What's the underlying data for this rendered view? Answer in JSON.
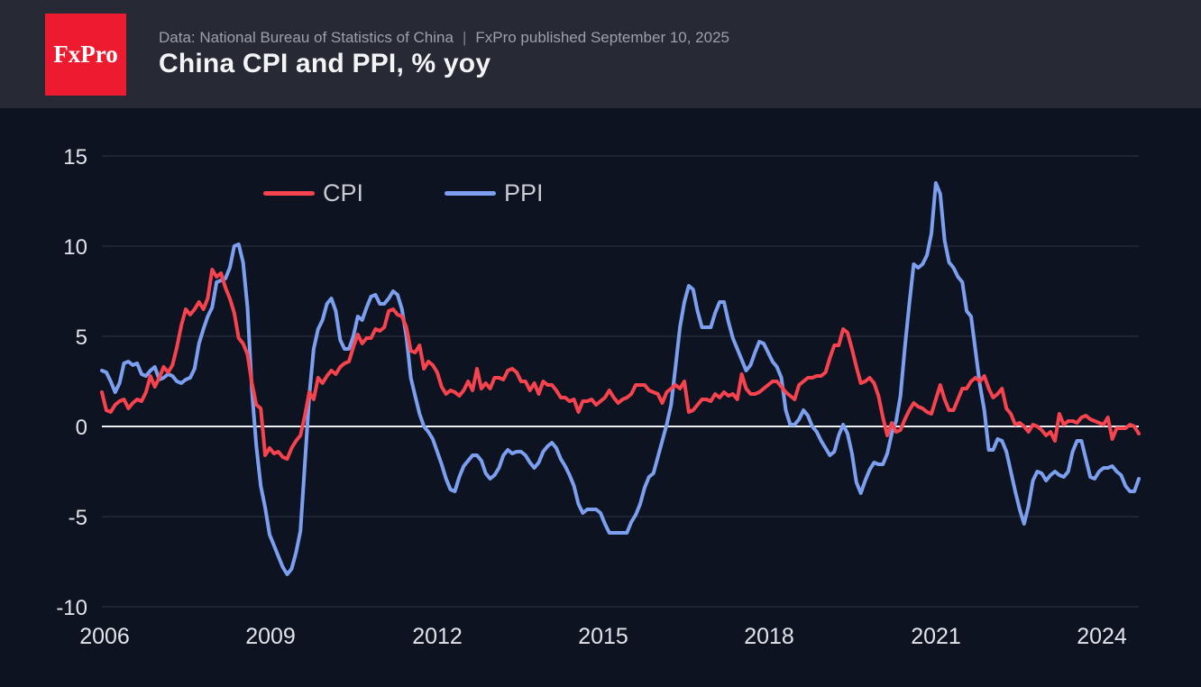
{
  "header": {
    "logo_text": "FxPro",
    "source_text": "Data: National Bureau of Statistics of China",
    "separator": "|",
    "published_text": "FxPro published September 10, 2025",
    "title": "China CPI and PPI, % yoy"
  },
  "colors": {
    "background": "#0d1321",
    "header_bar": "#272a35",
    "logo_red": "#ed1b2f",
    "cpi": "#f7434e",
    "ppi": "#7d9ff0",
    "zero_line": "#eef0f3",
    "grid": "rgba(255,255,255,0.15)",
    "axis_text": "#e2e4e9"
  },
  "chart_data": {
    "type": "line",
    "title": "China CPI and PPI, % yoy",
    "x_start": "2006-01",
    "x_end": "2025-08",
    "frequency": "monthly",
    "xlabel": "",
    "ylabel": "% yoy",
    "ylim": [
      -10,
      15
    ],
    "yticks": [
      15,
      10,
      5,
      0,
      -5,
      -10
    ],
    "xticks": [
      "2006",
      "2009",
      "2012",
      "2015",
      "2018",
      "2021",
      "2024"
    ],
    "grid": true,
    "legend_position": "top-left-inside",
    "series": [
      {
        "name": "CPI",
        "color": "#f7434e",
        "values": [
          1.9,
          0.9,
          0.8,
          1.2,
          1.4,
          1.5,
          1.0,
          1.3,
          1.5,
          1.4,
          1.9,
          2.8,
          2.2,
          2.7,
          3.3,
          3.0,
          3.4,
          4.4,
          5.6,
          6.5,
          6.2,
          6.5,
          6.9,
          6.5,
          7.1,
          8.7,
          8.3,
          8.5,
          7.7,
          7.1,
          6.3,
          4.9,
          4.6,
          4.0,
          2.4,
          1.2,
          1.0,
          -1.6,
          -1.2,
          -1.5,
          -1.4,
          -1.7,
          -1.8,
          -1.2,
          -0.8,
          -0.5,
          0.6,
          1.9,
          1.5,
          2.7,
          2.4,
          2.8,
          3.1,
          2.9,
          3.3,
          3.5,
          3.6,
          4.4,
          5.1,
          4.6,
          4.9,
          4.9,
          5.4,
          5.3,
          5.5,
          6.4,
          6.5,
          6.2,
          6.1,
          5.5,
          4.2,
          4.1,
          4.5,
          3.2,
          3.6,
          3.4,
          3.0,
          2.2,
          1.8,
          2.0,
          1.9,
          1.7,
          2.0,
          2.5,
          2.0,
          3.2,
          2.1,
          2.4,
          2.1,
          2.7,
          2.7,
          2.6,
          3.1,
          3.2,
          3.0,
          2.5,
          2.5,
          2.0,
          2.4,
          1.8,
          2.5,
          2.3,
          2.3,
          2.0,
          1.6,
          1.6,
          1.4,
          1.5,
          0.8,
          1.4,
          1.4,
          1.5,
          1.2,
          1.4,
          1.6,
          2.0,
          1.6,
          1.3,
          1.5,
          1.6,
          1.8,
          2.3,
          2.3,
          2.3,
          2.0,
          1.9,
          1.8,
          1.3,
          1.9,
          2.1,
          2.3,
          2.1,
          2.5,
          0.8,
          0.9,
          1.2,
          1.5,
          1.5,
          1.4,
          1.8,
          1.6,
          1.9,
          1.7,
          1.8,
          1.5,
          2.9,
          2.1,
          1.8,
          1.8,
          1.9,
          2.1,
          2.3,
          2.5,
          2.5,
          2.2,
          1.9,
          1.7,
          1.5,
          2.3,
          2.5,
          2.7,
          2.7,
          2.8,
          2.8,
          3.0,
          3.8,
          4.5,
          4.5,
          5.4,
          5.2,
          4.3,
          3.3,
          2.4,
          2.5,
          2.7,
          2.4,
          1.7,
          0.5,
          -0.5,
          0.2,
          -0.3,
          -0.2,
          0.4,
          0.9,
          1.3,
          1.1,
          1.0,
          0.8,
          0.7,
          1.5,
          2.3,
          1.5,
          0.9,
          0.9,
          1.5,
          2.1,
          2.1,
          2.5,
          2.7,
          2.5,
          2.8,
          2.1,
          1.6,
          1.8,
          2.1,
          1.0,
          0.7,
          0.1,
          0.2,
          0.0,
          -0.3,
          0.1,
          0.0,
          -0.2,
          -0.5,
          -0.3,
          -0.8,
          0.7,
          0.1,
          0.3,
          0.3,
          0.2,
          0.5,
          0.6,
          0.4,
          0.3,
          0.2,
          0.1,
          0.5,
          -0.7,
          -0.1,
          -0.1,
          -0.1,
          0.1,
          0.0,
          -0.4
        ]
      },
      {
        "name": "PPI",
        "color": "#7d9ff0",
        "values": [
          3.1,
          3.0,
          2.5,
          1.9,
          2.4,
          3.5,
          3.6,
          3.4,
          3.5,
          2.9,
          2.8,
          3.1,
          3.3,
          2.6,
          2.7,
          2.9,
          2.8,
          2.5,
          2.4,
          2.6,
          2.7,
          3.2,
          4.6,
          5.4,
          6.1,
          6.6,
          8.0,
          8.1,
          8.2,
          8.8,
          10.0,
          10.1,
          9.1,
          6.6,
          2.0,
          -1.1,
          -3.3,
          -4.5,
          -6.0,
          -6.6,
          -7.2,
          -7.8,
          -8.2,
          -7.9,
          -7.0,
          -5.8,
          -2.1,
          1.7,
          4.3,
          5.4,
          5.9,
          6.8,
          7.1,
          6.4,
          4.8,
          4.3,
          4.3,
          5.0,
          6.1,
          5.9,
          6.6,
          7.2,
          7.3,
          6.8,
          6.8,
          7.1,
          7.5,
          7.3,
          6.5,
          5.0,
          2.7,
          1.7,
          0.7,
          0.0,
          -0.3,
          -0.7,
          -1.4,
          -2.1,
          -2.9,
          -3.5,
          -3.6,
          -2.8,
          -2.2,
          -1.9,
          -1.6,
          -1.6,
          -1.9,
          -2.6,
          -2.9,
          -2.7,
          -2.3,
          -1.6,
          -1.3,
          -1.5,
          -1.4,
          -1.4,
          -1.6,
          -2.0,
          -2.3,
          -2.0,
          -1.4,
          -1.1,
          -0.9,
          -1.2,
          -1.8,
          -2.2,
          -2.7,
          -3.3,
          -4.3,
          -4.8,
          -4.6,
          -4.6,
          -4.6,
          -4.8,
          -5.4,
          -5.9,
          -5.9,
          -5.9,
          -5.9,
          -5.9,
          -5.3,
          -4.9,
          -4.3,
          -3.4,
          -2.8,
          -2.6,
          -1.7,
          -0.8,
          0.1,
          1.2,
          3.3,
          5.5,
          6.9,
          7.8,
          7.6,
          6.4,
          5.5,
          5.5,
          5.5,
          6.3,
          6.9,
          6.9,
          5.8,
          4.9,
          4.3,
          3.7,
          3.1,
          3.4,
          4.1,
          4.7,
          4.6,
          4.1,
          3.6,
          3.3,
          2.7,
          0.9,
          0.1,
          0.1,
          0.4,
          0.9,
          0.6,
          0.0,
          -0.3,
          -0.8,
          -1.2,
          -1.6,
          -1.4,
          -0.5,
          0.1,
          -0.4,
          -1.5,
          -3.1,
          -3.7,
          -3.0,
          -2.4,
          -2.0,
          -2.1,
          -2.1,
          -1.5,
          -0.4,
          0.3,
          1.7,
          4.4,
          6.8,
          9.0,
          8.8,
          9.0,
          9.5,
          10.7,
          13.5,
          12.9,
          10.3,
          9.1,
          8.8,
          8.3,
          8.0,
          6.4,
          6.1,
          4.2,
          2.3,
          0.9,
          -1.3,
          -1.3,
          -0.7,
          -0.8,
          -1.4,
          -2.5,
          -3.6,
          -4.6,
          -5.4,
          -4.4,
          -3.0,
          -2.5,
          -2.6,
          -3.0,
          -2.7,
          -2.5,
          -2.7,
          -2.8,
          -2.5,
          -1.4,
          -0.8,
          -0.8,
          -1.8,
          -2.8,
          -2.9,
          -2.5,
          -2.3,
          -2.3,
          -2.2,
          -2.5,
          -2.7,
          -3.3,
          -3.6,
          -3.6,
          -2.9
        ]
      }
    ]
  }
}
